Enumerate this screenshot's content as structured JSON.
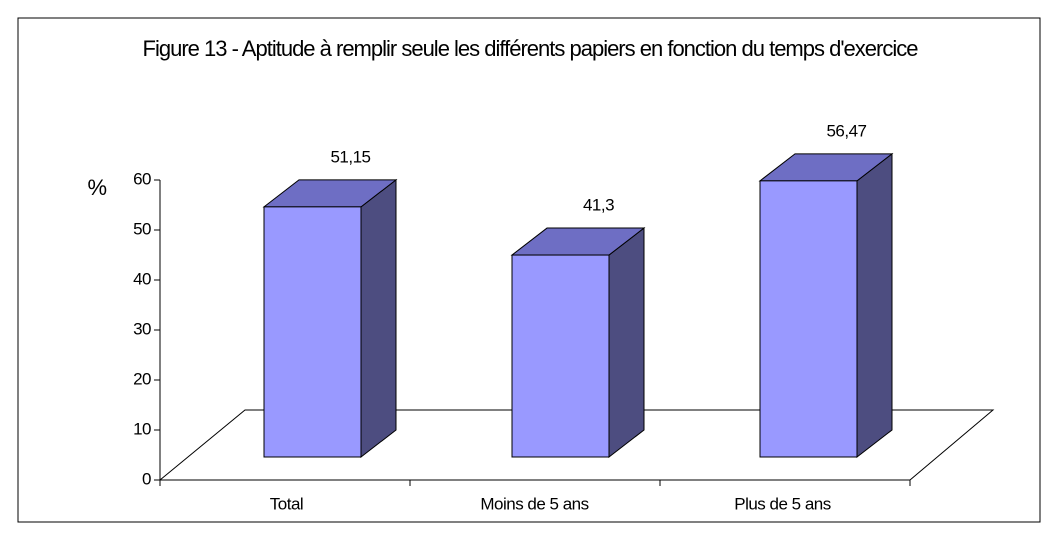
{
  "chart_data": {
    "type": "bar3d",
    "title": "Figure 13 - Aptitude à remplir seule les différents papiers en fonction du temps d'exercice",
    "y_label": "%",
    "categories": [
      "Total",
      "Moins de 5 ans",
      "Plus de 5 ans"
    ],
    "values": [
      51.15,
      41.3,
      56.47
    ],
    "value_labels": [
      "51,15",
      "41,3",
      "56,47"
    ],
    "color": "#9999ff",
    "ylim": [
      0,
      60
    ],
    "yticks": [
      0,
      10,
      20,
      30,
      40,
      50,
      60
    ],
    "grid": false
  }
}
